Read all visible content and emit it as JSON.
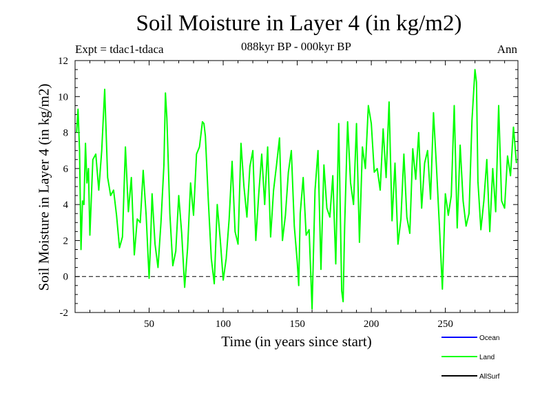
{
  "chart_data": {
    "type": "line",
    "title": "Soil Moisture in Layer 4 (in kg/m2)",
    "subtitle": "088kyr BP - 000kyr BP",
    "experiment": "Expt = tdac1-tdaca",
    "season": "Ann",
    "xlabel": "Time (in years since start)",
    "ylabel": "Soil Moisture in Layer 4 (in kg/m2)",
    "xlim": [
      0,
      299
    ],
    "ylim": [
      -2,
      12
    ],
    "xticks": [
      50,
      100,
      150,
      200,
      250
    ],
    "xtick_labels": [
      "50",
      "100",
      "150",
      "200",
      "250"
    ],
    "yticks": [
      -2,
      0,
      2,
      4,
      6,
      8,
      10,
      12
    ],
    "ytick_labels": [
      "-2",
      "0",
      "2",
      "4",
      "6",
      "8",
      "10",
      "12"
    ],
    "reference_line": 0,
    "legend": [
      {
        "name": "Ocean",
        "color": "#0000ff"
      },
      {
        "name": "Land",
        "color": "#00ff00"
      },
      {
        "name": "AllSurf",
        "color": "#000000"
      }
    ],
    "series": [
      {
        "name": "Land",
        "color": "#00ff00",
        "x": [
          1,
          2,
          3,
          4,
          5,
          6,
          7,
          8,
          9,
          10,
          12,
          14,
          16,
          18,
          20,
          22,
          23,
          24,
          26,
          28,
          30,
          32,
          34,
          36,
          38,
          40,
          42,
          44,
          46,
          48,
          50,
          51,
          52,
          54,
          56,
          58,
          60,
          61,
          62,
          64,
          66,
          68,
          70,
          72,
          74,
          76,
          78,
          80,
          82,
          84,
          86,
          87,
          88,
          90,
          92,
          94,
          96,
          98,
          100,
          102,
          104,
          106,
          108,
          110,
          112,
          114,
          116,
          118,
          120,
          122,
          124,
          126,
          128,
          130,
          132,
          134,
          136,
          138,
          140,
          142,
          144,
          146,
          148,
          150,
          151,
          152,
          154,
          156,
          158,
          160,
          162,
          164,
          166,
          168,
          170,
          172,
          174,
          176,
          178,
          180,
          181,
          182,
          184,
          186,
          188,
          190,
          192,
          194,
          196,
          198,
          200,
          202,
          204,
          206,
          208,
          210,
          212,
          214,
          216,
          218,
          220,
          222,
          224,
          226,
          228,
          230,
          232,
          234,
          236,
          238,
          240,
          242,
          244,
          246,
          248,
          250,
          252,
          254,
          256,
          258,
          260,
          262,
          264,
          266,
          268,
          270,
          271,
          272,
          274,
          276,
          278,
          280,
          282,
          284,
          286,
          288,
          290,
          292,
          294,
          296,
          298
        ],
        "y": [
          8.0,
          9.3,
          7.0,
          1.5,
          4.2,
          4.0,
          7.4,
          5.2,
          6.0,
          2.3,
          6.5,
          6.8,
          4.8,
          7.0,
          10.4,
          5.5,
          5.0,
          4.5,
          4.8,
          3.4,
          1.6,
          2.2,
          7.2,
          3.6,
          5.5,
          1.2,
          3.2,
          3.0,
          5.9,
          3.4,
          -0.1,
          2.0,
          4.6,
          1.8,
          0.5,
          3.0,
          6.2,
          10.2,
          8.8,
          3.5,
          0.6,
          1.4,
          4.5,
          2.4,
          -0.6,
          1.6,
          5.2,
          3.4,
          6.8,
          7.2,
          8.6,
          8.5,
          7.8,
          4.2,
          1.0,
          -0.4,
          4.0,
          2.1,
          -0.2,
          1.0,
          3.2,
          6.4,
          2.5,
          1.8,
          7.4,
          5.0,
          3.3,
          6.1,
          7.0,
          2.0,
          4.6,
          6.8,
          4.0,
          7.2,
          2.2,
          4.8,
          6.2,
          7.7,
          2.0,
          3.4,
          5.8,
          7.0,
          2.8,
          0.8,
          -0.5,
          3.5,
          5.5,
          2.3,
          2.6,
          -1.8,
          4.8,
          7.0,
          0.4,
          6.2,
          3.8,
          3.3,
          5.6,
          0.7,
          8.5,
          -0.8,
          -1.4,
          2.8,
          8.6,
          5.2,
          4.0,
          8.5,
          1.9,
          7.2,
          6.0,
          9.5,
          8.5,
          5.8,
          6.0,
          4.8,
          8.2,
          5.5,
          9.7,
          3.1,
          6.3,
          1.8,
          3.2,
          6.8,
          3.3,
          2.4,
          7.1,
          5.4,
          8.0,
          3.8,
          6.3,
          7.0,
          4.3,
          9.1,
          6.1,
          2.8,
          -0.7,
          4.6,
          3.4,
          4.5,
          9.5,
          2.7,
          7.3,
          4.2,
          2.8,
          3.5,
          8.7,
          11.5,
          10.8,
          5.3,
          2.6,
          4.2,
          6.5,
          2.5,
          6.0,
          3.6,
          9.5,
          4.2,
          3.8,
          6.7,
          5.6,
          8.3,
          6.3
        ]
      }
    ]
  }
}
